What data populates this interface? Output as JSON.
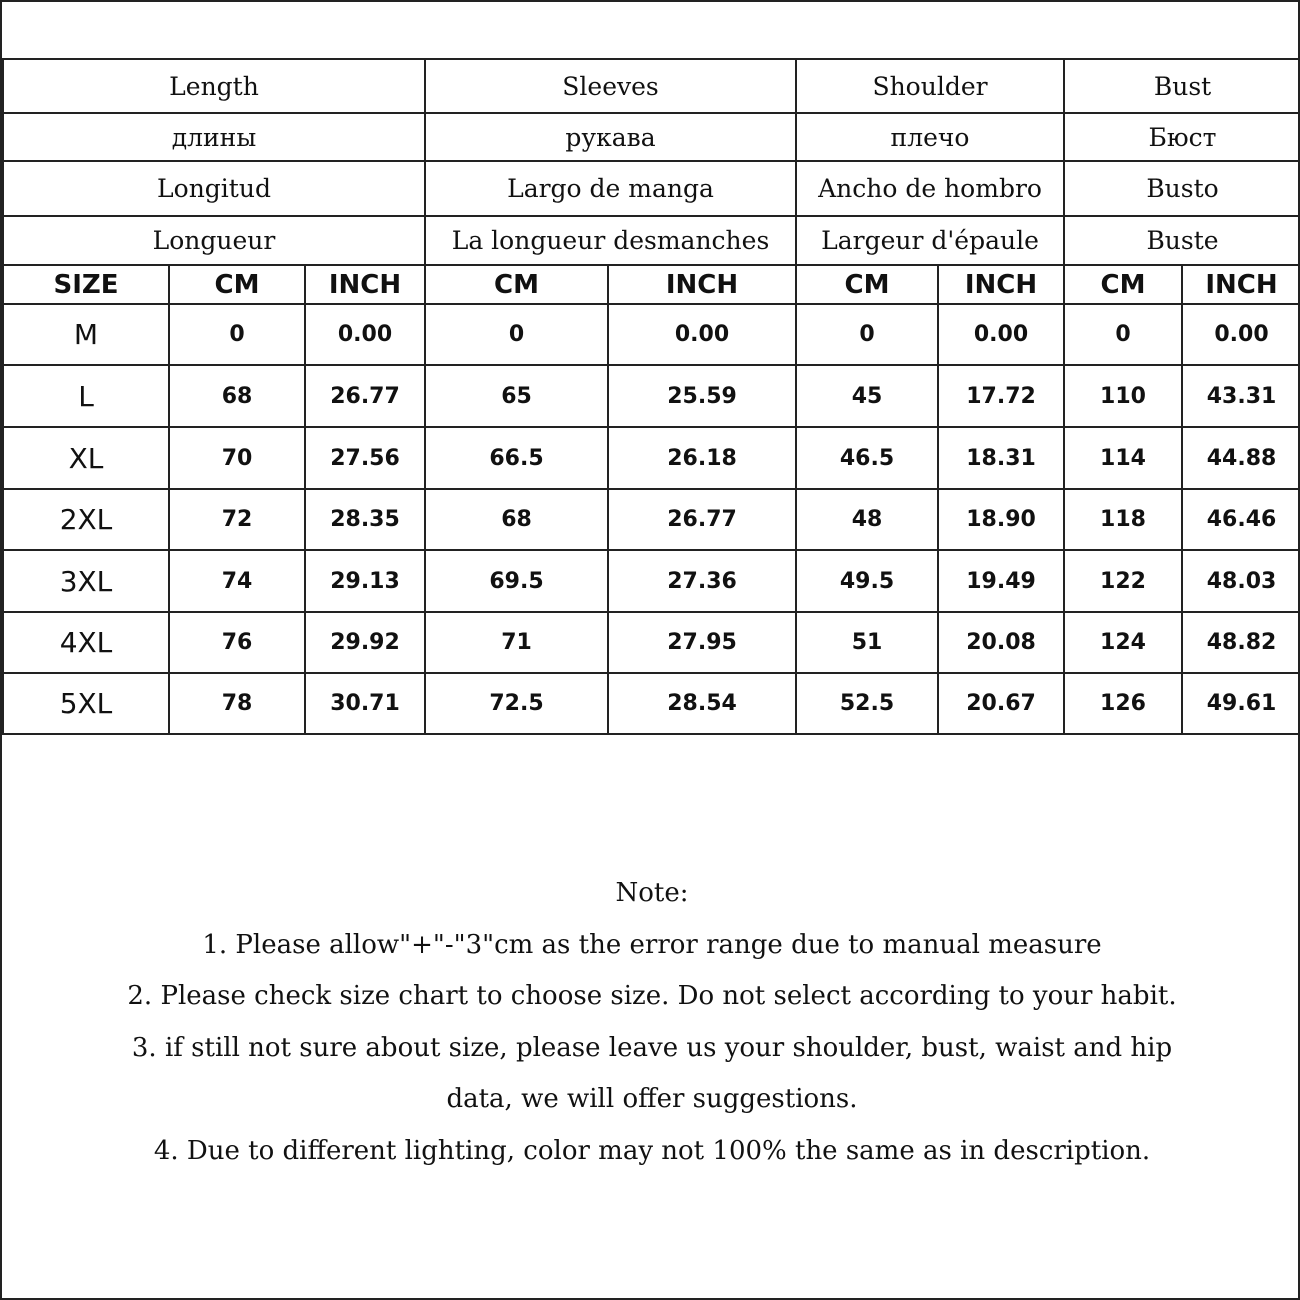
{
  "headers": [
    {
      "en": "Length",
      "ru": "длины",
      "es": "Longitud",
      "fr": "Longueur"
    },
    {
      "en": "Sleeves",
      "ru": "рукава",
      "es": "Largo de manga",
      "fr": "La longueur desmanches"
    },
    {
      "en": "Shoulder",
      "ru": "плечо",
      "es": "Ancho de hombro",
      "fr": "Largeur d'épaule"
    },
    {
      "en": "Bust",
      "ru": "Бюст",
      "es": "Busto",
      "fr": "Buste"
    }
  ],
  "units": [
    "SIZE",
    "CM",
    "INCH",
    "CM",
    "INCH",
    "CM",
    "INCH",
    "CM",
    "INCH"
  ],
  "rows": [
    [
      "M",
      "0",
      "0.00",
      "0",
      "0.00",
      "0",
      "0.00",
      "0",
      "0.00"
    ],
    [
      "L",
      "68",
      "26.77",
      "65",
      "25.59",
      "45",
      "17.72",
      "110",
      "43.31"
    ],
    [
      "XL",
      "70",
      "27.56",
      "66.5",
      "26.18",
      "46.5",
      "18.31",
      "114",
      "44.88"
    ],
    [
      "2XL",
      "72",
      "28.35",
      "68",
      "26.77",
      "48",
      "18.90",
      "118",
      "46.46"
    ],
    [
      "3XL",
      "74",
      "29.13",
      "69.5",
      "27.36",
      "49.5",
      "19.49",
      "122",
      "48.03"
    ],
    [
      "4XL",
      "76",
      "29.92",
      "71",
      "27.95",
      "51",
      "20.08",
      "124",
      "48.82"
    ],
    [
      "5XL",
      "78",
      "30.71",
      "72.5",
      "28.54",
      "52.5",
      "20.67",
      "126",
      "49.61"
    ]
  ],
  "notes": {
    "title": "Note:",
    "lines": [
      "1. Please allow\"+\"-\"3\"cm as the error range due to manual measure",
      "2. Please check size chart to choose size. Do not select according to your habit.",
      "3. if still not sure about size, please leave us your shoulder, bust, waist and hip",
      "data, we will offer suggestions.",
      "4. Due to different lighting, color may not 100% the same as in description."
    ]
  }
}
